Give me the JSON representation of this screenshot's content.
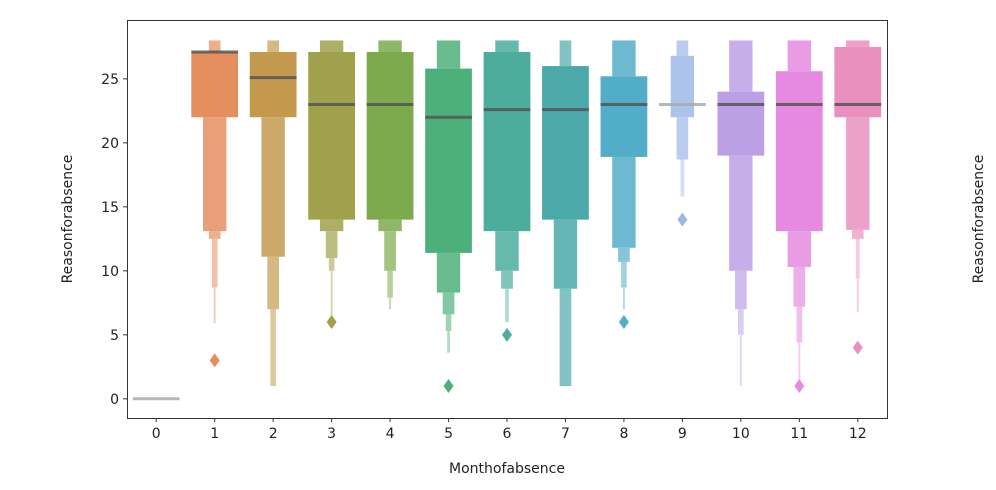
{
  "chart_data": {
    "type": "boxen",
    "xlabel": "Monthofabsence",
    "ylabel": "Reasonforabsence",
    "second_axis_ylabel": "Reasonforabsence",
    "ylim": [
      -1.5,
      29.6
    ],
    "yticks": [
      0,
      5,
      10,
      15,
      20,
      25
    ],
    "categories": [
      "0",
      "1",
      "2",
      "3",
      "4",
      "5",
      "6",
      "7",
      "8",
      "9",
      "10",
      "11",
      "12"
    ],
    "series": [
      {
        "name": "0",
        "color": "#aaaaaa",
        "median": 0,
        "boxes": [],
        "outliers": []
      },
      {
        "name": "1",
        "color": "#e58f5f",
        "median": 27.1,
        "boxes": [
          [
            22,
            27.1,
            1
          ],
          [
            13.1,
            22,
            0.5
          ],
          [
            27.1,
            28,
            0.25
          ],
          [
            12.5,
            13.1,
            0.25
          ],
          [
            8.7,
            12.5,
            0.12
          ],
          [
            5.9,
            8.7,
            0.04
          ]
        ],
        "outliers": [
          3
        ]
      },
      {
        "name": "2",
        "color": "#c39a4d",
        "median": 25.1,
        "boxes": [
          [
            22,
            27.1,
            1
          ],
          [
            11.1,
            22,
            0.5
          ],
          [
            27.1,
            28,
            0.25
          ],
          [
            7,
            11.1,
            0.25
          ],
          [
            1,
            7,
            0.12
          ]
        ],
        "outliers": []
      },
      {
        "name": "3",
        "color": "#a0a14c",
        "median": 23,
        "boxes": [
          [
            14,
            27.1,
            1
          ],
          [
            27.1,
            28,
            0.5
          ],
          [
            13.1,
            14,
            0.5
          ],
          [
            11,
            13.1,
            0.25
          ],
          [
            10,
            11,
            0.12
          ],
          [
            6,
            10,
            0.04
          ]
        ],
        "outliers": [
          6
        ]
      },
      {
        "name": "4",
        "color": "#7caa4c",
        "median": 23,
        "boxes": [
          [
            14,
            27.1,
            1
          ],
          [
            27.1,
            28,
            0.5
          ],
          [
            13.1,
            14,
            0.5
          ],
          [
            10,
            13.1,
            0.25
          ],
          [
            7.9,
            10,
            0.12
          ],
          [
            7,
            7.9,
            0.04
          ]
        ],
        "outliers": []
      },
      {
        "name": "5",
        "color": "#4db07a",
        "median": 22,
        "boxes": [
          [
            11.4,
            25.8,
            1
          ],
          [
            25.8,
            28,
            0.5
          ],
          [
            8.3,
            11.4,
            0.5
          ],
          [
            6.6,
            8.3,
            0.25
          ],
          [
            5.3,
            6.6,
            0.12
          ],
          [
            3.6,
            5.3,
            0.06
          ]
        ],
        "outliers": [
          1
        ]
      },
      {
        "name": "6",
        "color": "#4cad9c",
        "median": 22.6,
        "boxes": [
          [
            13.1,
            27.1,
            1
          ],
          [
            27.1,
            28,
            0.5
          ],
          [
            10,
            13.1,
            0.5
          ],
          [
            8.6,
            10,
            0.25
          ],
          [
            6,
            8.6,
            0.08
          ]
        ],
        "outliers": [
          5
        ]
      },
      {
        "name": "7",
        "color": "#4ca9a9",
        "median": 22.6,
        "boxes": [
          [
            14,
            26,
            1
          ],
          [
            26,
            28,
            0.25
          ],
          [
            8.6,
            14,
            0.5
          ],
          [
            1,
            8.6,
            0.25
          ]
        ],
        "outliers": []
      },
      {
        "name": "8",
        "color": "#52adc8",
        "median": 23,
        "boxes": [
          [
            18.9,
            25.2,
            1
          ],
          [
            25.2,
            28,
            0.5
          ],
          [
            11.8,
            18.9,
            0.5
          ],
          [
            10.7,
            11.8,
            0.25
          ],
          [
            8.7,
            10.7,
            0.12
          ],
          [
            7,
            8.7,
            0.04
          ]
        ],
        "outliers": [
          6
        ]
      },
      {
        "name": "9",
        "color": "#9db8e7",
        "median": 23,
        "boxes": [
          [
            22,
            26.8,
            0.5
          ],
          [
            26.8,
            28,
            0.25
          ],
          [
            18.7,
            22,
            0.25
          ],
          [
            15.8,
            18.7,
            0.08
          ]
        ],
        "outliers": [
          14
        ]
      },
      {
        "name": "10",
        "color": "#bca0e6",
        "median": 23,
        "boxes": [
          [
            19,
            24,
            1
          ],
          [
            24,
            28,
            0.5
          ],
          [
            10,
            19,
            0.5
          ],
          [
            7,
            10,
            0.25
          ],
          [
            5,
            7,
            0.12
          ],
          [
            1,
            5,
            0.04
          ]
        ],
        "outliers": []
      },
      {
        "name": "11",
        "color": "#e68ae1",
        "median": 23,
        "boxes": [
          [
            13.1,
            25.6,
            1
          ],
          [
            25.6,
            28,
            0.5
          ],
          [
            10.3,
            13.1,
            0.5
          ],
          [
            7.2,
            10.3,
            0.25
          ],
          [
            4.4,
            7.2,
            0.12
          ],
          [
            1.5,
            4.4,
            0.04
          ]
        ],
        "outliers": [
          1
        ]
      },
      {
        "name": "12",
        "color": "#e990bf",
        "median": 23,
        "boxes": [
          [
            22,
            27.5,
            1
          ],
          [
            27.5,
            28,
            0.5
          ],
          [
            13.2,
            22,
            0.5
          ],
          [
            12.5,
            13.2,
            0.25
          ],
          [
            9.4,
            12.5,
            0.08
          ],
          [
            6.8,
            9.4,
            0.04
          ]
        ],
        "outliers": [
          4
        ]
      }
    ]
  }
}
